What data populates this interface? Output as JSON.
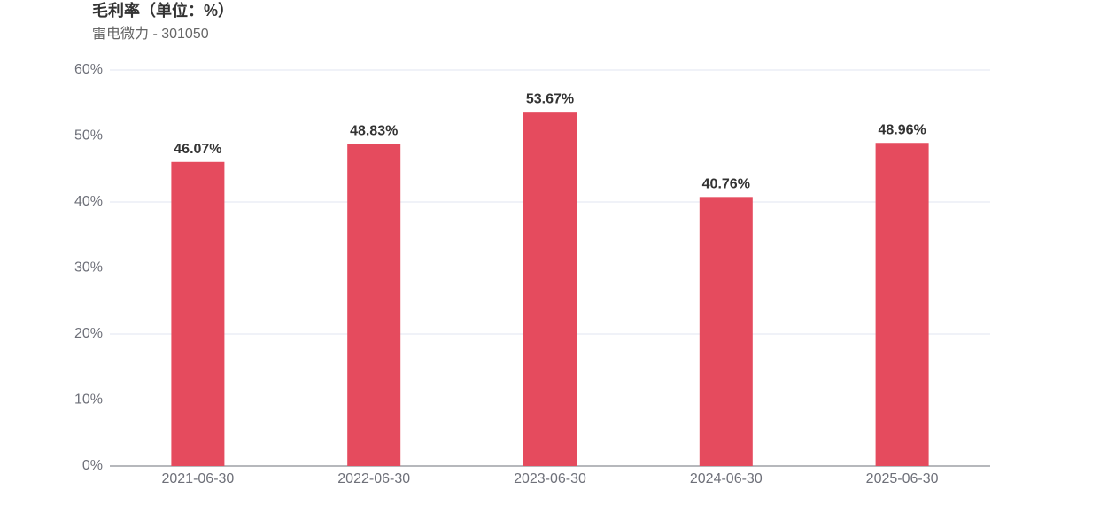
{
  "chart_data": {
    "type": "bar",
    "title": "毛利率（单位：%）",
    "subtitle": "雷电微力 - 301050",
    "categories": [
      "2021-06-30",
      "2022-06-30",
      "2023-06-30",
      "2024-06-30",
      "2025-06-30"
    ],
    "values": [
      46.07,
      48.83,
      53.67,
      40.76,
      48.96
    ],
    "value_labels": [
      "46.07%",
      "48.83%",
      "53.67%",
      "40.76%",
      "48.96%"
    ],
    "color": "#e54b5e",
    "ylim": [
      0,
      60
    ],
    "yticks": [
      {
        "value": 0,
        "label": "0%"
      },
      {
        "value": 10,
        "label": "10%"
      },
      {
        "value": 20,
        "label": "20%"
      },
      {
        "value": 30,
        "label": "30%"
      },
      {
        "value": 40,
        "label": "40%"
      },
      {
        "value": 50,
        "label": "50%"
      },
      {
        "value": 60,
        "label": "60%"
      }
    ],
    "grid": true
  }
}
